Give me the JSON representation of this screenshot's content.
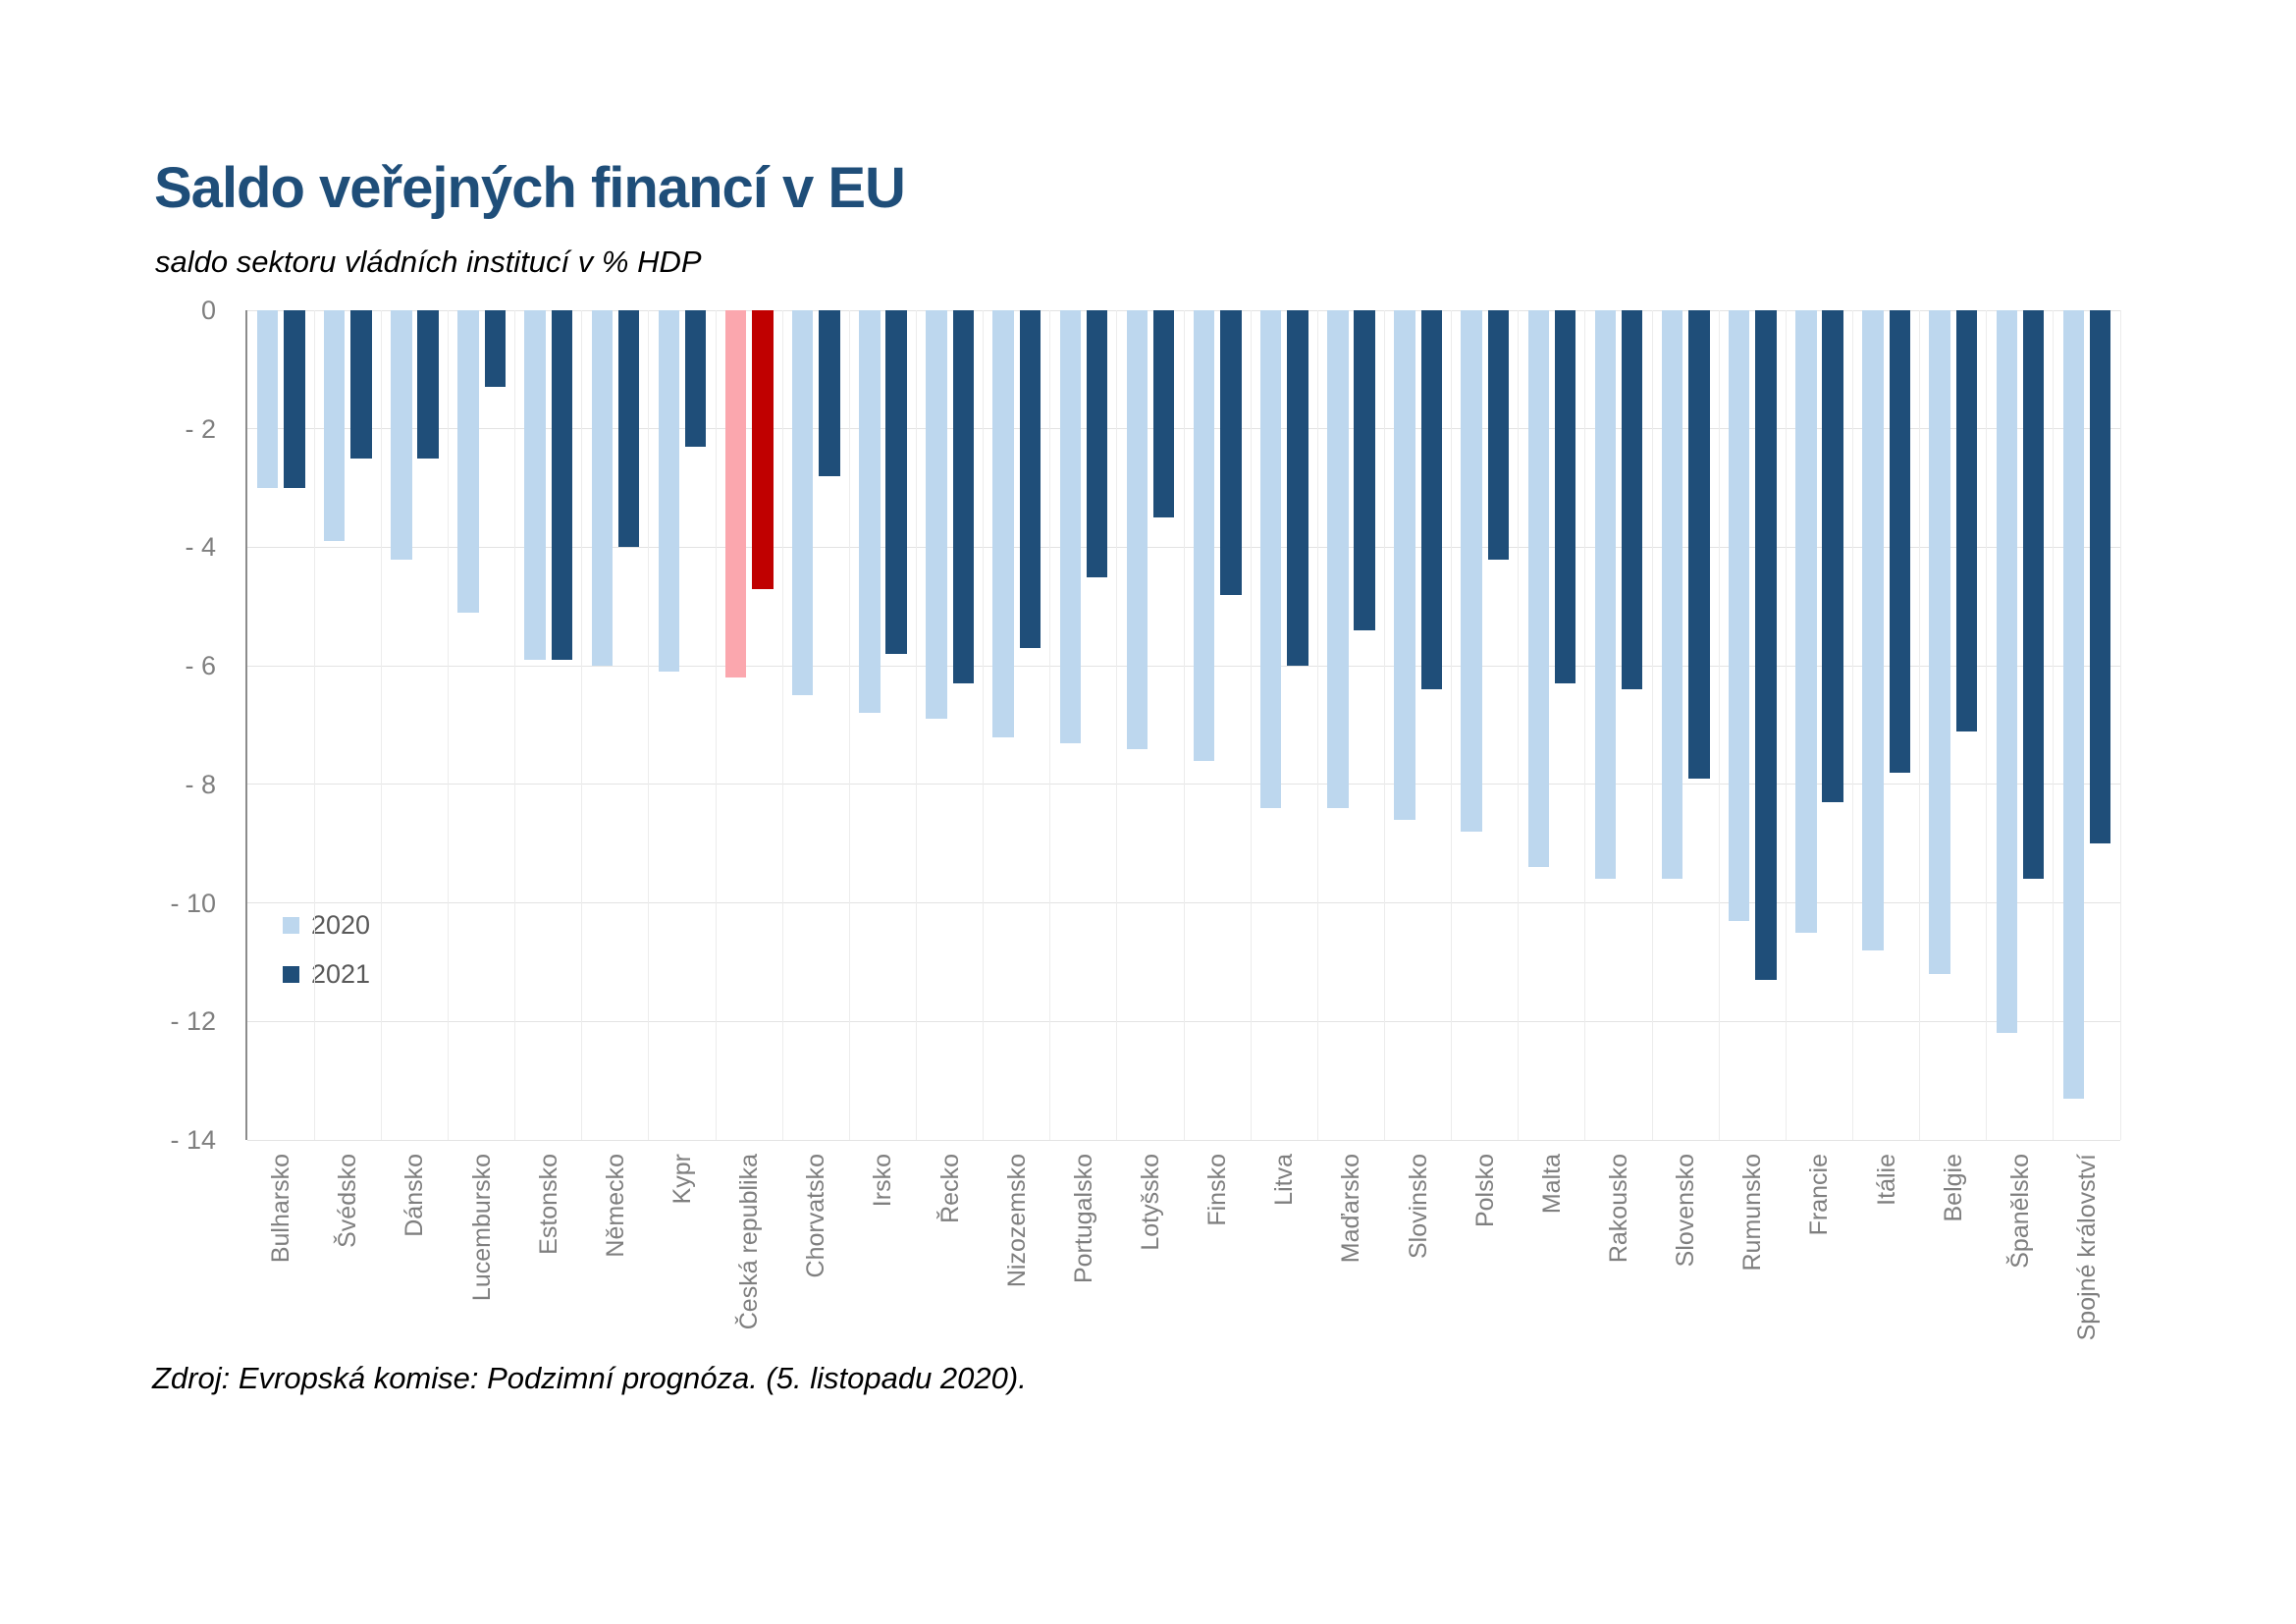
{
  "title": "Saldo veřejných financí v EU",
  "subtitle": "saldo sektoru vládních institucí v % HDP",
  "source": "Zdroj: Evropská komise: Podzimní prognóza. (5. listopadu 2020).",
  "legend": {
    "items": [
      {
        "label": "2020",
        "color": "#BDD7EE"
      },
      {
        "label": "2021",
        "color": "#1F4E79"
      }
    ]
  },
  "chart_data": {
    "type": "bar",
    "title": "Saldo veřejných financí v EU",
    "subtitle": "saldo sektoru vládních institucí v % HDP",
    "xlabel": "",
    "ylabel": "saldo sektoru vládních institucí v % HDP",
    "ylim": [
      -14,
      0
    ],
    "yticks": [
      "0",
      "- 2",
      "- 4",
      "- 6",
      "- 8",
      "- 10",
      "- 12",
      "- 14"
    ],
    "grid": true,
    "legend_position": "inside-left",
    "categories": [
      "Bulharsko",
      "Švédsko",
      "Dánsko",
      "Lucembursko",
      "Estonsko",
      "Německo",
      "Kypr",
      "Česká republika",
      "Chorvatsko",
      "Irsko",
      "Řecko",
      "Nizozemsko",
      "Portugalsko",
      "Lotyšsko",
      "Finsko",
      "Litva",
      "Maďarsko",
      "Slovinsko",
      "Polsko",
      "Malta",
      "Rakousko",
      "Slovensko",
      "Rumunsko",
      "Francie",
      "Itálie",
      "Belgie",
      "Španělsko",
      "Spojné království"
    ],
    "series": [
      {
        "name": "2020",
        "values": [
          -3.0,
          -3.9,
          -4.2,
          -5.1,
          -5.9,
          -6.0,
          -6.1,
          -6.2,
          -6.5,
          -6.8,
          -6.9,
          -7.2,
          -7.3,
          -7.4,
          -7.6,
          -8.4,
          -8.4,
          -8.6,
          -8.8,
          -9.4,
          -9.6,
          -9.6,
          -10.3,
          -10.5,
          -10.8,
          -11.2,
          -12.2,
          -13.3
        ]
      },
      {
        "name": "2021",
        "values": [
          -3.0,
          -2.5,
          -2.5,
          -1.3,
          -5.9,
          -4.0,
          -2.3,
          -4.7,
          -2.8,
          -5.8,
          -6.3,
          -5.7,
          -4.5,
          -3.5,
          -4.8,
          -6.0,
          -5.4,
          -6.4,
          -4.2,
          -6.3,
          -6.4,
          -7.9,
          -11.3,
          -8.3,
          -7.8,
          -7.1,
          -9.6,
          -9.0
        ]
      }
    ],
    "series_colors": {
      "2020": "#BDD7EE",
      "2021": "#1F4E79"
    },
    "highlight_category": "Česká republika",
    "highlight_colors": {
      "2020": "#FBA7AE",
      "2021": "#C00000"
    }
  }
}
